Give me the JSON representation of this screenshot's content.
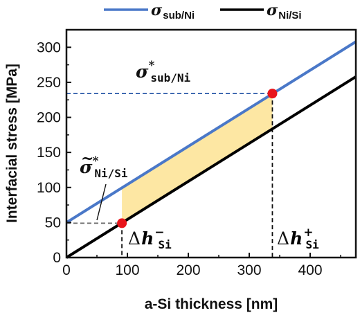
{
  "chart_data": {
    "type": "line",
    "xlabel": "a-Si thickness [nm]",
    "ylabel": "Interfacial stress [MPa]",
    "xlim": [
      0,
      475
    ],
    "ylim": [
      0,
      325
    ],
    "xticks": [
      0,
      100,
      200,
      300,
      400
    ],
    "yticks": [
      0,
      50,
      100,
      150,
      200,
      250,
      300
    ],
    "xtick_labels": [
      "0",
      "100",
      "200",
      "300",
      "400"
    ],
    "ytick_labels": [
      "0",
      "50",
      "100",
      "150",
      "200",
      "250",
      "300"
    ],
    "grid": false,
    "legend_placement": "top",
    "series": [
      {
        "label": "σ",
        "subscript": "sub/Ni",
        "color": "#4a78c8",
        "x": [
          0,
          475
        ],
        "y": [
          50,
          308
        ]
      },
      {
        "label": "σ",
        "subscript": "Ni/Si",
        "color": "#000000",
        "x": [
          0,
          475
        ],
        "y": [
          0,
          258
        ]
      }
    ],
    "shaded_region": {
      "color": "#fde7a3",
      "x_start": 91,
      "x_end": 338,
      "upper": "sub/Ni",
      "lower": "Ni/Si"
    },
    "points": [
      {
        "x": 338,
        "y": 234,
        "color": "#e8151b"
      },
      {
        "x": 91,
        "y": 49,
        "color": "#e8151b"
      }
    ],
    "reference_lines": [
      {
        "from": [
          0,
          234
        ],
        "to": [
          338,
          234
        ],
        "color": "#2a58a8",
        "style": "dashed"
      },
      {
        "from": [
          338,
          234
        ],
        "to": [
          338,
          0
        ],
        "color": "#111111",
        "style": "dashed"
      },
      {
        "from": [
          0,
          49
        ],
        "to": [
          91,
          49
        ],
        "color": "#666666",
        "style": "dashed"
      },
      {
        "from": [
          91,
          49
        ],
        "to": [
          91,
          0
        ],
        "color": "#111111",
        "style": "dashed"
      }
    ],
    "annotations": {
      "sigma_sub_star": {
        "symbol": "σ",
        "sup": "*",
        "sub": "sub/Ni"
      },
      "sigma_ni_tilde_star": {
        "symbol": "σ",
        "tilde": "~",
        "sup": "*",
        "sub": "Ni/Si"
      },
      "delta_minus": {
        "delta": "Δ",
        "h": "h",
        "sup": "−",
        "sub": "Si"
      },
      "delta_plus": {
        "delta": "Δ",
        "h": "h",
        "sup": "+",
        "sub": "Si"
      }
    }
  }
}
